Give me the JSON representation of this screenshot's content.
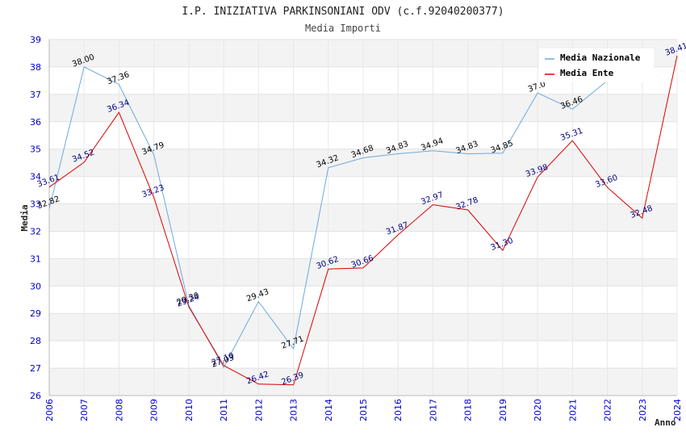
{
  "chart_data": {
    "type": "line",
    "title": "I.P. INIZIATIVA PARKINSONIANI ODV (c.f.92040200377)",
    "subtitle": "Media Importi",
    "xlabel": "Anno",
    "ylabel": "Media",
    "ylim": [
      26,
      39
    ],
    "yticks": [
      "26",
      "27",
      "28",
      "29",
      "30",
      "31",
      "32",
      "33",
      "34",
      "35",
      "36",
      "37",
      "38",
      "39"
    ],
    "x": [
      "2006",
      "2007",
      "2008",
      "2009",
      "2010",
      "2011",
      "2012",
      "2013",
      "2014",
      "2015",
      "2016",
      "2017",
      "2018",
      "2019",
      "2020",
      "2021",
      "2022",
      "2023",
      "2024"
    ],
    "grid": true,
    "legend_position": "top-right",
    "series": [
      {
        "name": "Media Nazionale",
        "color": "#6fa8dc",
        "label_color": "#000000",
        "values": [
          32.82,
          38.0,
          37.36,
          34.79,
          29.3,
          27.03,
          29.43,
          27.71,
          34.32,
          34.68,
          34.83,
          34.94,
          34.83,
          34.85,
          37.05,
          36.46,
          37.5,
          null,
          null
        ],
        "labels": [
          "32.82",
          "38.00",
          "37.36",
          "34.79",
          "29.30",
          "27.03",
          "29.43",
          "27.71",
          "34.32",
          "34.68",
          "34.83",
          "34.94",
          "34.83",
          "34.85",
          "37.0",
          "36.46",
          "",
          "",
          ""
        ]
      },
      {
        "name": "Media Ente",
        "color": "#dd0000",
        "label_color": "#000080",
        "values": [
          33.61,
          34.52,
          36.34,
          33.23,
          29.24,
          27.1,
          26.42,
          26.39,
          30.62,
          30.66,
          31.87,
          32.97,
          32.78,
          31.3,
          33.98,
          35.31,
          33.6,
          32.48,
          38.41
        ],
        "labels": [
          "33.61",
          "34.52",
          "36.34",
          "33.23",
          "29.24",
          "27.10",
          "26.42",
          "26.39",
          "30.62",
          "30.66",
          "31.87",
          "32.97",
          "32.78",
          "31.30",
          "33.98",
          "35.31",
          "33.60",
          "32.48",
          "38.41"
        ]
      }
    ]
  }
}
